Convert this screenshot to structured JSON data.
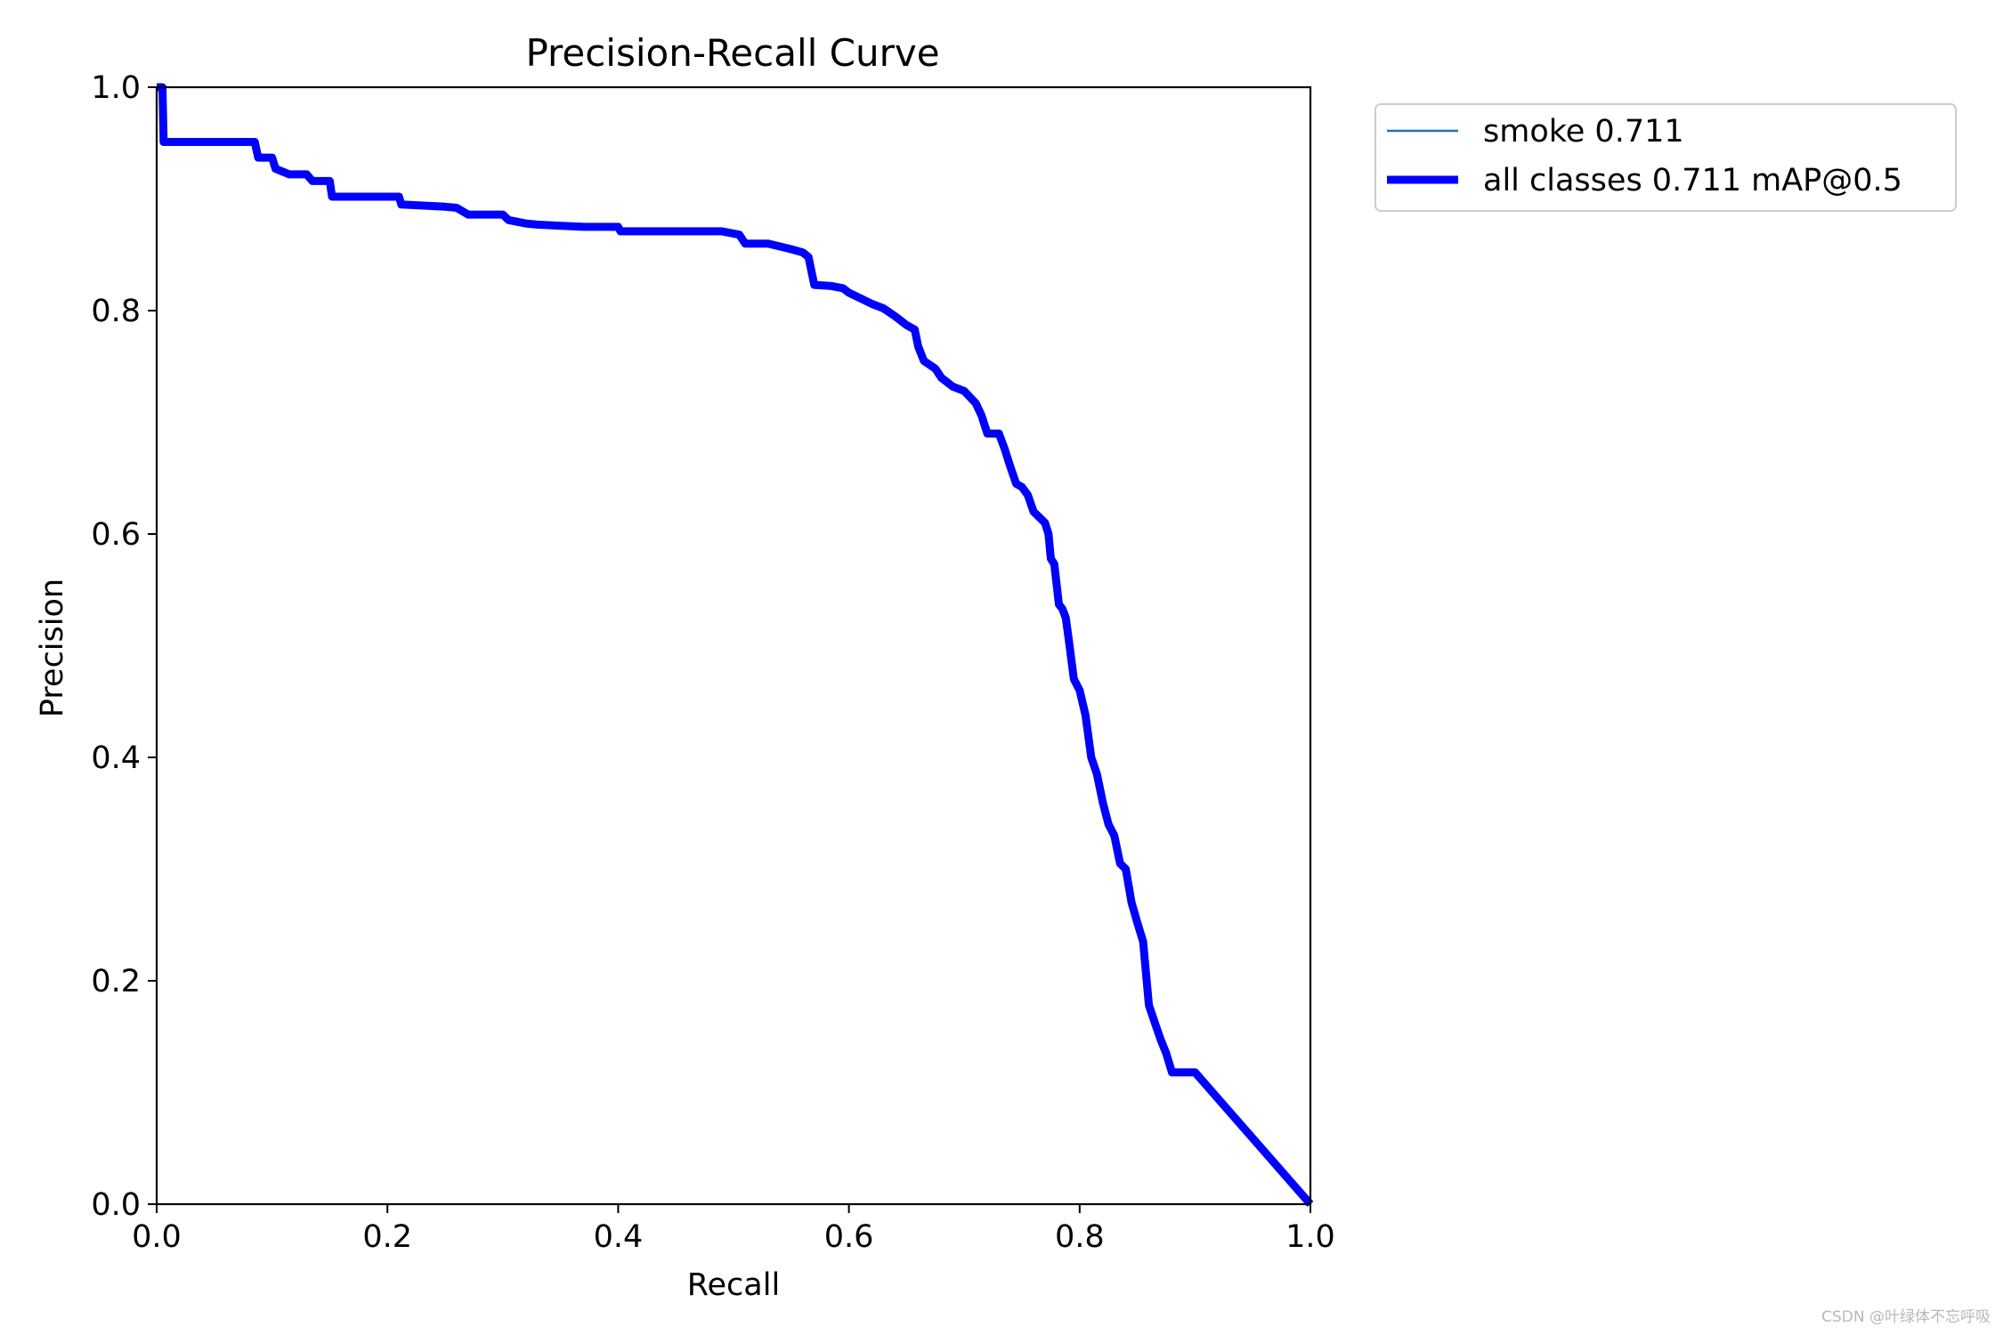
{
  "chart_data": {
    "type": "line",
    "title": "Precision-Recall Curve",
    "xlabel": "Recall",
    "ylabel": "Precision",
    "xlim": [
      0,
      1
    ],
    "ylim": [
      0,
      1
    ],
    "xticks": [
      "0.0",
      "0.2",
      "0.4",
      "0.6",
      "0.8",
      "1.0"
    ],
    "yticks": [
      "0.0",
      "0.2",
      "0.4",
      "0.6",
      "0.8",
      "1.0"
    ],
    "grid": false,
    "legend_position": "outside upper right",
    "series": [
      {
        "name": "smoke 0.711",
        "color": "#1f77b4",
        "linewidth": "thin",
        "x": [
          0.0,
          0.005,
          0.006,
          0.085,
          0.088,
          0.1,
          0.103,
          0.115,
          0.13,
          0.135,
          0.15,
          0.152,
          0.21,
          0.212,
          0.25,
          0.26,
          0.27,
          0.3,
          0.305,
          0.32,
          0.33,
          0.37,
          0.4,
          0.402,
          0.445,
          0.49,
          0.505,
          0.51,
          0.53,
          0.55,
          0.56,
          0.565,
          0.57,
          0.585,
          0.595,
          0.6,
          0.61,
          0.62,
          0.63,
          0.64,
          0.65,
          0.657,
          0.66,
          0.665,
          0.675,
          0.68,
          0.69,
          0.7,
          0.71,
          0.715,
          0.72,
          0.73,
          0.735,
          0.74,
          0.745,
          0.75,
          0.755,
          0.76,
          0.77,
          0.773,
          0.775,
          0.778,
          0.782,
          0.785,
          0.788,
          0.79,
          0.795,
          0.8,
          0.805,
          0.81,
          0.815,
          0.82,
          0.825,
          0.83,
          0.835,
          0.84,
          0.845,
          0.85,
          0.855,
          0.86,
          0.865,
          0.87,
          0.875,
          0.88,
          0.9,
          1.0
        ],
        "y": [
          1.0,
          1.0,
          0.951,
          0.951,
          0.937,
          0.937,
          0.927,
          0.922,
          0.922,
          0.916,
          0.916,
          0.902,
          0.902,
          0.895,
          0.893,
          0.892,
          0.886,
          0.886,
          0.881,
          0.878,
          0.877,
          0.875,
          0.875,
          0.871,
          0.871,
          0.871,
          0.868,
          0.86,
          0.86,
          0.855,
          0.852,
          0.848,
          0.823,
          0.822,
          0.82,
          0.816,
          0.811,
          0.806,
          0.802,
          0.795,
          0.787,
          0.783,
          0.768,
          0.755,
          0.748,
          0.74,
          0.732,
          0.728,
          0.717,
          0.706,
          0.69,
          0.69,
          0.676,
          0.66,
          0.645,
          0.642,
          0.635,
          0.62,
          0.61,
          0.6,
          0.578,
          0.573,
          0.537,
          0.533,
          0.525,
          0.51,
          0.47,
          0.46,
          0.438,
          0.4,
          0.385,
          0.36,
          0.34,
          0.33,
          0.305,
          0.3,
          0.27,
          0.252,
          0.235,
          0.178,
          0.163,
          0.148,
          0.135,
          0.118,
          0.118,
          0.0
        ]
      },
      {
        "name": "all classes 0.711 mAP@0.5",
        "color": "#0000ff",
        "linewidth": "thick",
        "x": [
          0.0,
          0.005,
          0.006,
          0.085,
          0.088,
          0.1,
          0.103,
          0.115,
          0.13,
          0.135,
          0.15,
          0.152,
          0.21,
          0.212,
          0.25,
          0.26,
          0.27,
          0.3,
          0.305,
          0.32,
          0.33,
          0.37,
          0.4,
          0.402,
          0.445,
          0.49,
          0.505,
          0.51,
          0.53,
          0.55,
          0.56,
          0.565,
          0.57,
          0.585,
          0.595,
          0.6,
          0.61,
          0.62,
          0.63,
          0.64,
          0.65,
          0.657,
          0.66,
          0.665,
          0.675,
          0.68,
          0.69,
          0.7,
          0.71,
          0.715,
          0.72,
          0.73,
          0.735,
          0.74,
          0.745,
          0.75,
          0.755,
          0.76,
          0.77,
          0.773,
          0.775,
          0.778,
          0.782,
          0.785,
          0.788,
          0.79,
          0.795,
          0.8,
          0.805,
          0.81,
          0.815,
          0.82,
          0.825,
          0.83,
          0.835,
          0.84,
          0.845,
          0.85,
          0.855,
          0.86,
          0.865,
          0.87,
          0.875,
          0.88,
          0.9,
          1.0
        ],
        "y": [
          1.0,
          1.0,
          0.951,
          0.951,
          0.937,
          0.937,
          0.927,
          0.922,
          0.922,
          0.916,
          0.916,
          0.902,
          0.902,
          0.895,
          0.893,
          0.892,
          0.886,
          0.886,
          0.881,
          0.878,
          0.877,
          0.875,
          0.875,
          0.871,
          0.871,
          0.871,
          0.868,
          0.86,
          0.86,
          0.855,
          0.852,
          0.848,
          0.823,
          0.822,
          0.82,
          0.816,
          0.811,
          0.806,
          0.802,
          0.795,
          0.787,
          0.783,
          0.768,
          0.755,
          0.748,
          0.74,
          0.732,
          0.728,
          0.717,
          0.706,
          0.69,
          0.69,
          0.676,
          0.66,
          0.645,
          0.642,
          0.635,
          0.62,
          0.61,
          0.6,
          0.578,
          0.573,
          0.537,
          0.533,
          0.525,
          0.51,
          0.47,
          0.46,
          0.438,
          0.4,
          0.385,
          0.36,
          0.34,
          0.33,
          0.305,
          0.3,
          0.27,
          0.252,
          0.235,
          0.178,
          0.163,
          0.148,
          0.135,
          0.118,
          0.118,
          0.0
        ]
      }
    ]
  },
  "watermark": "CSDN @叶绿体不忘呼吸"
}
